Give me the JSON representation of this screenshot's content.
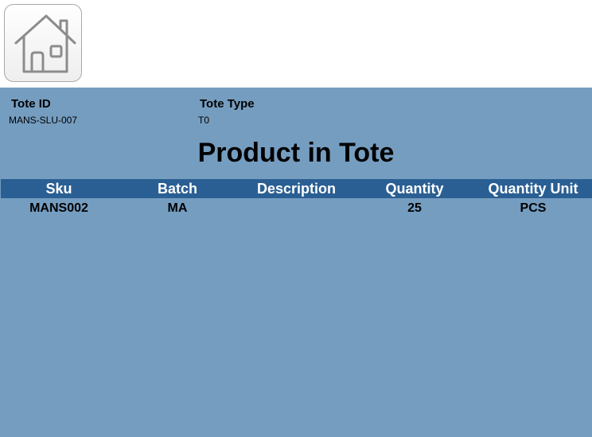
{
  "header": {
    "home_icon": "home-icon"
  },
  "tote": {
    "id_label": "Tote ID",
    "id_value": "MANS-SLU-007",
    "type_label": "Tote Type",
    "type_value": "T0"
  },
  "main": {
    "title": "Product in Tote"
  },
  "products_table": {
    "columns": [
      "Sku",
      "Batch",
      "Description",
      "Quantity",
      "Quantity Unit"
    ],
    "rows": [
      {
        "sku": "MANS002",
        "batch": "MA",
        "description": "",
        "quantity": "25",
        "unit": "PCS"
      }
    ]
  },
  "colors": {
    "panel_background": "#759dc0",
    "table_header": "#2a5f93"
  }
}
